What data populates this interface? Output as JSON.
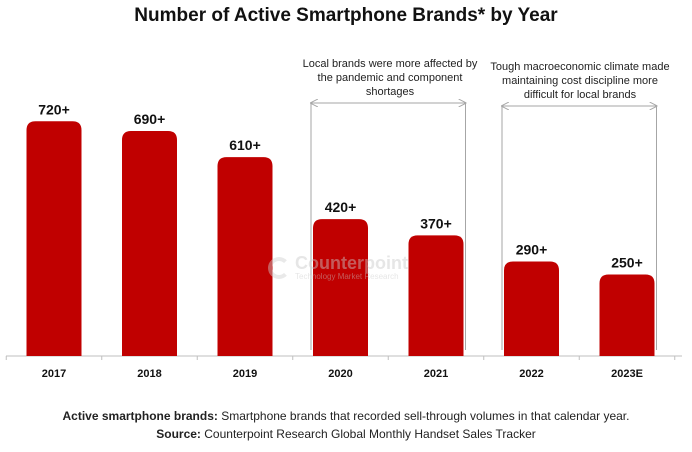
{
  "chart_data": {
    "type": "bar",
    "title": "Number of Active Smartphone Brands* by Year",
    "categories": [
      "2017",
      "2018",
      "2019",
      "2020",
      "2021",
      "2022",
      "2023E"
    ],
    "values": [
      720,
      690,
      610,
      420,
      370,
      290,
      250
    ],
    "data_labels": [
      "720+",
      "690+",
      "610+",
      "420+",
      "370+",
      "290+",
      "250+"
    ],
    "bar_color": "#c00000",
    "annotations": [
      {
        "text": "Local brands were more affected by the pandemic and component shortages",
        "span": [
          "2020",
          "2021"
        ]
      },
      {
        "text": "Tough macroeconomic climate made maintaining cost discipline more difficult for local brands",
        "span": [
          "2022",
          "2023E"
        ]
      }
    ],
    "grid": false,
    "legend": "none"
  },
  "watermark": {
    "name": "Counterpoint",
    "tagline": "Technology Market Research"
  },
  "footer": {
    "definition_label": "Active smartphone brands:",
    "definition_text": " Smartphone brands that recorded sell-through volumes in that calendar year.",
    "source_label": "Source:",
    "source_text": " Counterpoint Research Global Monthly Handset Sales Tracker"
  }
}
